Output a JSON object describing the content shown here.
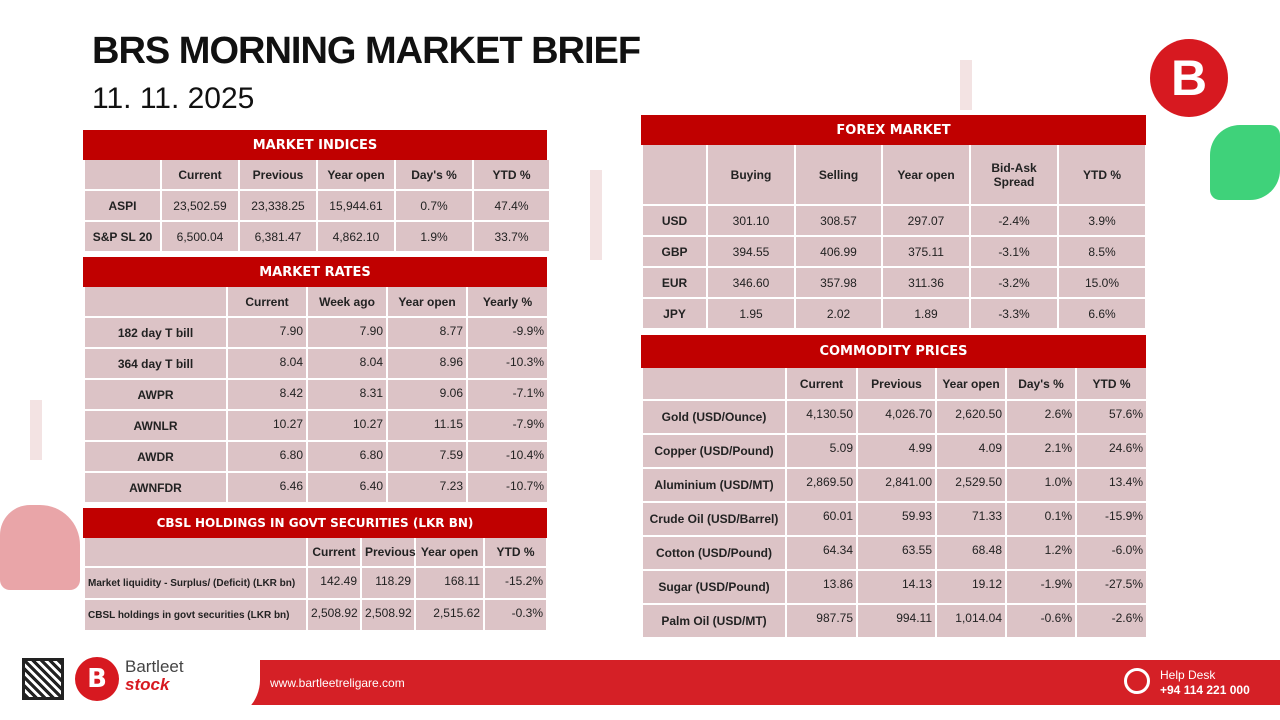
{
  "header": {
    "title": "BRS MORNING MARKET BRIEF",
    "date": "11. 11. 2025",
    "logo_icon": "brs-logo-icon"
  },
  "colors": {
    "accent": "#c00000",
    "cell": "#dcc3c6"
  },
  "market_indices": {
    "title": "MARKET INDICES",
    "columns": [
      "",
      "Current",
      "Previous",
      "Year open",
      "Day's %",
      "YTD %"
    ],
    "rows": [
      [
        "ASPI",
        "23,502.59",
        "23,338.25",
        "15,944.61",
        "0.7%",
        "47.4%"
      ],
      [
        "S&P SL 20",
        "6,500.04",
        "6,381.47",
        "4,862.10",
        "1.9%",
        "33.7%"
      ]
    ]
  },
  "market_rates": {
    "title": "MARKET RATES",
    "columns": [
      "",
      "Current",
      "Week ago",
      "Year open",
      "Yearly %"
    ],
    "rows": [
      [
        "182 day T bill",
        "7.90",
        "7.90",
        "8.77",
        "-9.9%"
      ],
      [
        "364 day T bill",
        "8.04",
        "8.04",
        "8.96",
        "-10.3%"
      ],
      [
        "AWPR",
        "8.42",
        "8.31",
        "9.06",
        "-7.1%"
      ],
      [
        "AWNLR",
        "10.27",
        "10.27",
        "11.15",
        "-7.9%"
      ],
      [
        "AWDR",
        "6.80",
        "6.80",
        "7.59",
        "-10.4%"
      ],
      [
        "AWNFDR",
        "6.46",
        "6.40",
        "7.23",
        "-10.7%"
      ]
    ]
  },
  "cbsl": {
    "title": "CBSL HOLDINGS IN GOVT SECURITIES (LKR BN)",
    "columns": [
      "",
      "Current",
      "Previous",
      "Year open",
      "YTD %"
    ],
    "rows": [
      [
        "Market liquidity - Surplus/ (Deficit) (LKR bn)",
        "142.49",
        "118.29",
        "168.11",
        "-15.2%"
      ],
      [
        "CBSL holdings in govt securities (LKR bn)",
        "2,508.92",
        "2,508.92",
        "2,515.62",
        "-0.3%"
      ]
    ]
  },
  "forex": {
    "title": "FOREX MARKET",
    "columns": [
      "",
      "Buying",
      "Selling",
      "Year open",
      "Bid-Ask Spread",
      "YTD %"
    ],
    "rows": [
      [
        "USD",
        "301.10",
        "308.57",
        "297.07",
        "-2.4%",
        "3.9%"
      ],
      [
        "GBP",
        "394.55",
        "406.99",
        "375.11",
        "-3.1%",
        "8.5%"
      ],
      [
        "EUR",
        "346.60",
        "357.98",
        "311.36",
        "-3.2%",
        "15.0%"
      ],
      [
        "JPY",
        "1.95",
        "2.02",
        "1.89",
        "-3.3%",
        "6.6%"
      ]
    ]
  },
  "commodities": {
    "title": "COMMODITY PRICES",
    "columns": [
      "",
      "Current",
      "Previous",
      "Year open",
      "Day's %",
      "YTD %"
    ],
    "rows": [
      [
        "Gold (USD/Ounce)",
        "4,130.50",
        "4,026.70",
        "2,620.50",
        "2.6%",
        "57.6%"
      ],
      [
        "Copper (USD/Pound)",
        "5.09",
        "4.99",
        "4.09",
        "2.1%",
        "24.6%"
      ],
      [
        "Aluminium (USD/MT)",
        "2,869.50",
        "2,841.00",
        "2,529.50",
        "1.0%",
        "13.4%"
      ],
      [
        "Crude Oil (USD/Barrel)",
        "60.01",
        "59.93",
        "71.33",
        "0.1%",
        "-15.9%"
      ],
      [
        "Cotton (USD/Pound)",
        "64.34",
        "63.55",
        "68.48",
        "1.2%",
        "-6.0%"
      ],
      [
        "Sugar (USD/Pound)",
        "13.86",
        "14.13",
        "19.12",
        "-1.9%",
        "-27.5%"
      ],
      [
        "Palm Oil (USD/MT)",
        "987.75",
        "994.11",
        "1,014.04",
        "-0.6%",
        "-2.6%"
      ]
    ]
  },
  "footer": {
    "brand_top": "Bartleet",
    "brand_bottom": "stock",
    "website": "www.bartleetreligare.com",
    "helpdesk_label": "Help Desk",
    "helpdesk_phone": "+94 114 221 000"
  }
}
